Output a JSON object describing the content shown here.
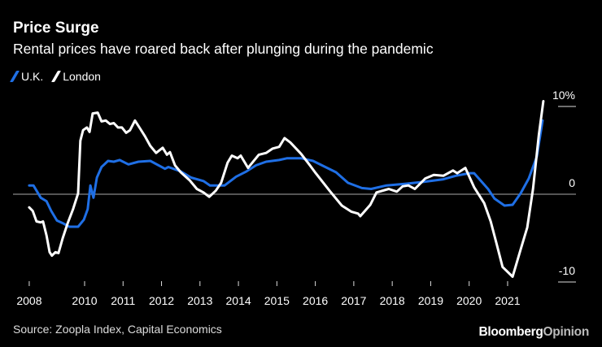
{
  "chart_data": {
    "type": "line",
    "title": "Price Surge",
    "subtitle": "Rental prices have roared back after plunging during the pandemic",
    "source": "Source: Zoopla Index, Capital Economics",
    "brand": {
      "bloomberg": "Bloomberg",
      "opinion": "Opinion"
    },
    "xlabel": "",
    "ylabel": "",
    "ylim": [
      -10,
      10
    ],
    "y_ticks": [
      {
        "value": 10,
        "label": "10%"
      },
      {
        "value": 0,
        "label": "0"
      },
      {
        "value": -10,
        "label": "-10"
      }
    ],
    "x_ticks": [
      {
        "value": 2008.56,
        "label": "2008"
      },
      {
        "value": 2010,
        "label": "2010"
      },
      {
        "value": 2011,
        "label": "2011"
      },
      {
        "value": 2012,
        "label": "2012"
      },
      {
        "value": 2013,
        "label": "2013"
      },
      {
        "value": 2014,
        "label": "2014"
      },
      {
        "value": 2015,
        "label": "2015"
      },
      {
        "value": 2016,
        "label": "2016"
      },
      {
        "value": 2017,
        "label": "2017"
      },
      {
        "value": 2018,
        "label": "2018"
      },
      {
        "value": 2019,
        "label": "2019"
      },
      {
        "value": 2020,
        "label": "2020"
      },
      {
        "value": 2021,
        "label": "2021"
      }
    ],
    "grid": false,
    "zero_line": true,
    "legend_position": "top-left",
    "series": [
      {
        "name": "U.K.",
        "color": "#1f6fe5",
        "x": [
          2008.56,
          2008.67,
          2008.86,
          2009.01,
          2009.13,
          2009.28,
          2009.43,
          2009.6,
          2009.83,
          2009.98,
          2010.08,
          2010.15,
          2010.23,
          2010.32,
          2010.44,
          2010.61,
          2010.76,
          2010.91,
          2011.14,
          2011.4,
          2011.71,
          2012.09,
          2012.18,
          2012.5,
          2012.77,
          2013.09,
          2013.26,
          2013.64,
          2013.94,
          2014.21,
          2014.46,
          2014.72,
          2015.06,
          2015.27,
          2015.63,
          2015.94,
          2016.26,
          2016.54,
          2016.85,
          2017.21,
          2017.45,
          2017.85,
          2018.38,
          2018.8,
          2019.33,
          2019.65,
          2020.01,
          2020.13,
          2020.49,
          2020.66,
          2020.92,
          2021.13,
          2021.34,
          2021.55,
          2021.76,
          2021.91
        ],
        "y": [
          1.0,
          1.0,
          -0.4,
          -0.8,
          -1.9,
          -3.0,
          -3.3,
          -3.7,
          -3.7,
          -2.9,
          -1.7,
          1.0,
          -0.4,
          1.9,
          3.1,
          3.8,
          3.7,
          3.9,
          3.4,
          3.7,
          3.8,
          2.9,
          3.1,
          2.6,
          1.9,
          1.5,
          1.0,
          1.0,
          2.0,
          2.6,
          3.3,
          3.7,
          3.9,
          4.1,
          4.1,
          3.8,
          3.1,
          2.5,
          1.3,
          0.7,
          0.6,
          1.0,
          1.2,
          1.4,
          1.7,
          2.1,
          2.4,
          2.4,
          0.6,
          -0.5,
          -1.3,
          -1.2,
          0.1,
          1.8,
          4.3,
          8.4
        ]
      },
      {
        "name": "London",
        "color": "#ffffff",
        "x": [
          2008.56,
          2008.65,
          2008.75,
          2008.86,
          2008.92,
          2009.01,
          2009.09,
          2009.15,
          2009.24,
          2009.32,
          2009.43,
          2009.56,
          2009.7,
          2009.83,
          2009.89,
          2009.96,
          2010.06,
          2010.13,
          2010.21,
          2010.34,
          2010.44,
          2010.55,
          2010.66,
          2010.76,
          2010.87,
          2010.97,
          2011.08,
          2011.18,
          2011.31,
          2011.44,
          2011.57,
          2011.71,
          2011.86,
          2012.03,
          2012.14,
          2012.22,
          2012.35,
          2012.5,
          2012.73,
          2012.92,
          2013.09,
          2013.24,
          2013.41,
          2013.55,
          2013.72,
          2013.83,
          2013.98,
          2014.06,
          2014.25,
          2014.53,
          2014.72,
          2014.89,
          2015.06,
          2015.2,
          2015.35,
          2015.63,
          2015.84,
          2016.01,
          2016.37,
          2016.69,
          2016.94,
          2017.11,
          2017.17,
          2017.43,
          2017.59,
          2017.91,
          2018.12,
          2018.27,
          2018.42,
          2018.59,
          2018.86,
          2019.08,
          2019.33,
          2019.58,
          2019.69,
          2019.9,
          2020.13,
          2020.39,
          2020.56,
          2020.71,
          2020.87,
          2021.13,
          2021.34,
          2021.51,
          2021.66,
          2021.81,
          2021.93
        ],
        "y": [
          -1.5,
          -1.9,
          -3.1,
          -3.2,
          -3.1,
          -4.7,
          -6.6,
          -7.0,
          -6.6,
          -6.7,
          -5.0,
          -3.3,
          -1.7,
          0.1,
          6.1,
          7.3,
          7.6,
          7.1,
          9.2,
          9.3,
          8.3,
          8.4,
          8.0,
          8.1,
          7.6,
          7.6,
          7.0,
          7.3,
          8.4,
          7.5,
          6.6,
          5.5,
          4.7,
          5.3,
          4.5,
          4.8,
          3.3,
          2.5,
          1.6,
          0.6,
          0.2,
          -0.3,
          0.4,
          1.3,
          3.6,
          4.4,
          4.1,
          4.4,
          3.0,
          4.5,
          4.7,
          5.2,
          5.4,
          6.4,
          5.9,
          4.6,
          3.4,
          2.4,
          0.4,
          -1.3,
          -2.0,
          -2.2,
          -2.5,
          -1.2,
          0.2,
          0.6,
          0.3,
          0.9,
          1.0,
          0.6,
          1.8,
          2.2,
          2.1,
          2.7,
          2.4,
          3.0,
          0.8,
          -1.0,
          -3.1,
          -5.6,
          -8.3,
          -9.4,
          -6.3,
          -3.8,
          0.6,
          6.7,
          10.6
        ]
      }
    ]
  }
}
